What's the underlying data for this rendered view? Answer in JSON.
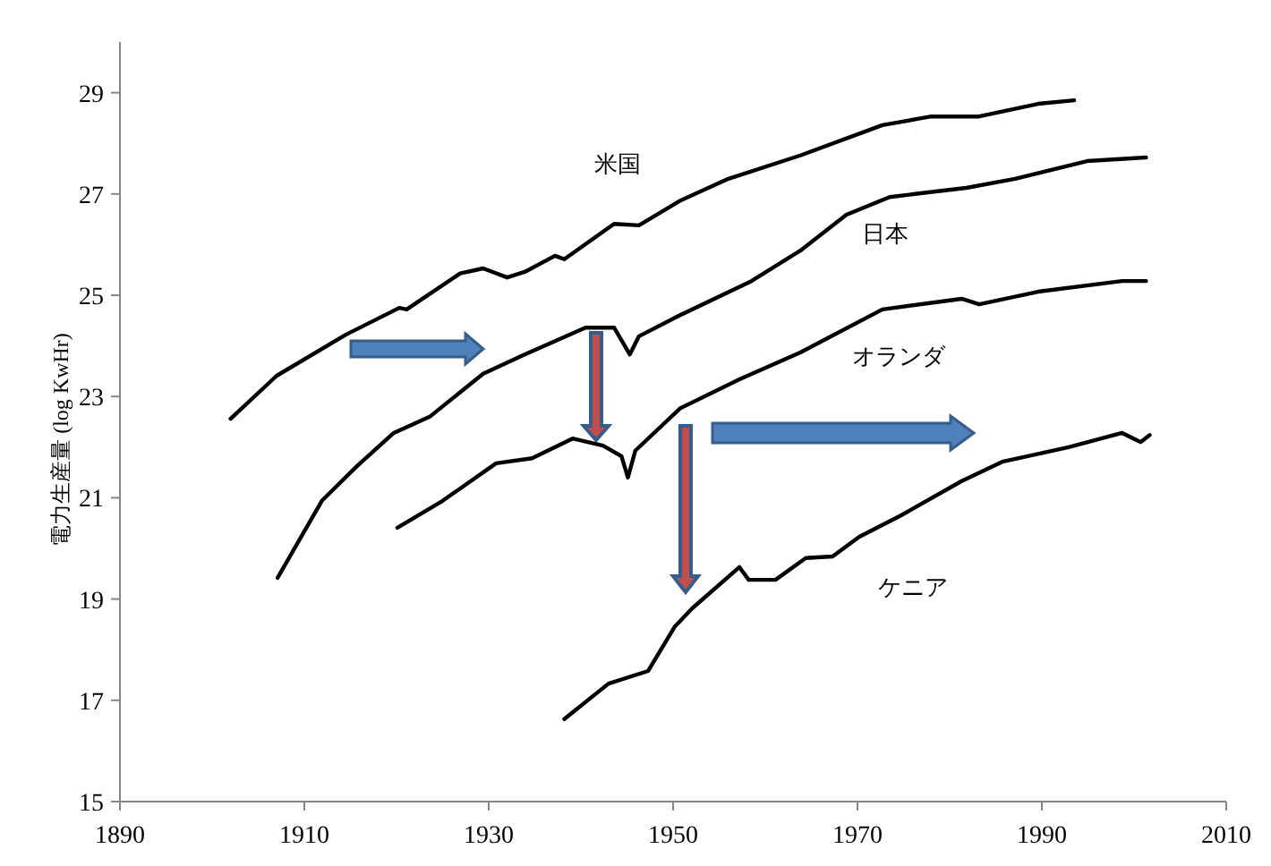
{
  "chart_data": {
    "type": "line",
    "ylabel": "電力生産量 (log KwHr)",
    "xlim": [
      1890,
      2010
    ],
    "xticks": [
      1890,
      1910,
      1930,
      1950,
      1970,
      1990,
      2010
    ],
    "ylim": [
      15,
      30
    ],
    "yticks": [
      15,
      17,
      19,
      21,
      23,
      25,
      27,
      29
    ],
    "grid": false,
    "legend": false,
    "marker": "none",
    "line_style": "solid",
    "series": [
      {
        "name": "米国",
        "color": "#000000",
        "x": [
          1902,
          1907,
          1914.5,
          1920.3,
          1921.1,
          1926.9,
          1929.4,
          1932,
          1933.9,
          1937.2,
          1938.2,
          1943.6,
          1946.3,
          1950.8,
          1956,
          1963.8,
          1972.7,
          1978,
          1983.2,
          1989.6,
          1993.5
        ],
        "values": [
          22.56,
          23.41,
          24.22,
          24.75,
          24.72,
          25.43,
          25.53,
          25.35,
          25.46,
          25.78,
          25.71,
          26.41,
          26.38,
          26.87,
          27.3,
          27.76,
          28.36,
          28.53,
          28.53,
          28.78,
          28.85
        ]
      },
      {
        "name": "日本",
        "color": "#000000",
        "x": [
          1907.1,
          1911.9,
          1915.8,
          1919.7,
          1923.6,
          1929.4,
          1933.9,
          1940.5,
          1943.6,
          1945.3,
          1946.3,
          1950.8,
          1958.5,
          1963.8,
          1968.8,
          1973.5,
          1981.8,
          1987.1,
          1994.9,
          2001.3
        ],
        "values": [
          19.42,
          20.94,
          21.64,
          22.28,
          22.6,
          23.45,
          23.83,
          24.36,
          24.36,
          23.83,
          24.19,
          24.61,
          25.28,
          25.88,
          26.59,
          26.94,
          27.12,
          27.3,
          27.65,
          27.72
        ]
      },
      {
        "name": "オランダ",
        "color": "#000000",
        "x": [
          1920.1,
          1925,
          1930.8,
          1934.7,
          1939.1,
          1942.4,
          1944.4,
          1945.1,
          1945.9,
          1950.8,
          1957.2,
          1963.8,
          1972.7,
          1981.3,
          1983.2,
          1989.6,
          1998.7,
          2001.3
        ],
        "values": [
          20.41,
          20.94,
          21.68,
          21.78,
          22.17,
          22.03,
          21.82,
          21.4,
          21.93,
          22.77,
          23.34,
          23.87,
          24.72,
          24.93,
          24.82,
          25.07,
          25.28,
          25.28
        ]
      },
      {
        "name": "ケニア",
        "color": "#000000",
        "x": [
          1938.2,
          1943,
          1947.3,
          1950.2,
          1952.1,
          1957.2,
          1958.2,
          1961.1,
          1964.4,
          1967.3,
          1970.2,
          1974.7,
          1981.3,
          1985.7,
          1992.9,
          1998.7,
          2000.7,
          2001.7
        ],
        "values": [
          16.63,
          17.33,
          17.58,
          18.46,
          18.82,
          19.63,
          19.38,
          19.38,
          19.81,
          19.84,
          20.23,
          20.65,
          21.33,
          21.71,
          22.0,
          22.28,
          22.1,
          22.24
        ]
      }
    ]
  }
}
